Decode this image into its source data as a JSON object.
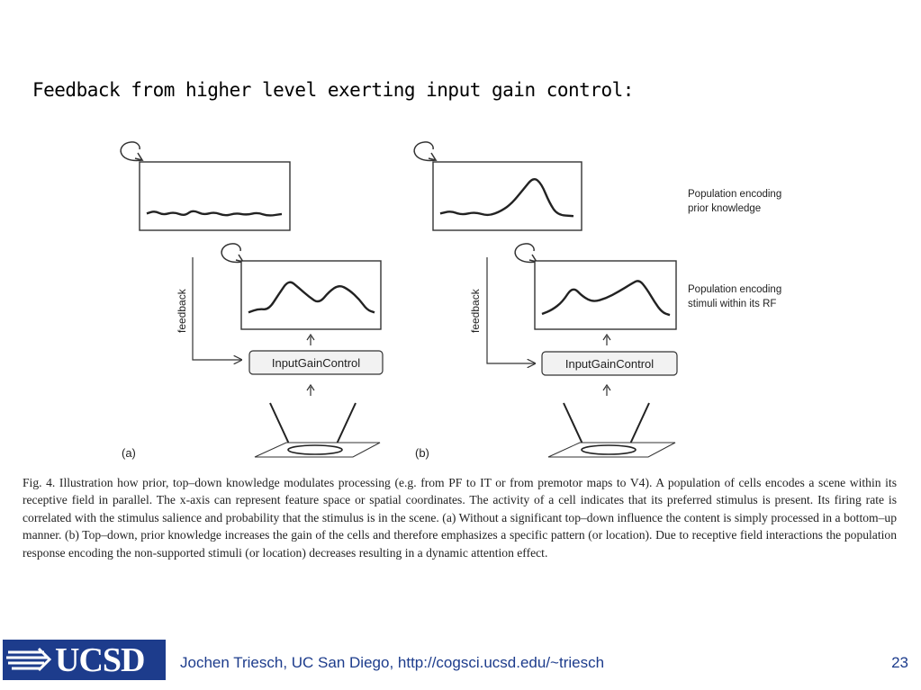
{
  "slide": {
    "title": "Feedback from higher level exerting input gain control:",
    "page_number": "23"
  },
  "figure": {
    "panels": [
      {
        "label": "(a)",
        "feedback_label": "feedback",
        "gain_box_label": "InputGainControl",
        "top_curve": [
          [
            0,
            0.15
          ],
          [
            0.06,
            0.2
          ],
          [
            0.12,
            0.12
          ],
          [
            0.2,
            0.18
          ],
          [
            0.28,
            0.1
          ],
          [
            0.34,
            0.22
          ],
          [
            0.42,
            0.12
          ],
          [
            0.5,
            0.18
          ],
          [
            0.58,
            0.1
          ],
          [
            0.66,
            0.16
          ],
          [
            0.74,
            0.12
          ],
          [
            0.82,
            0.17
          ],
          [
            0.9,
            0.1
          ],
          [
            1,
            0.14
          ]
        ],
        "middle_curve": [
          [
            0,
            0.15
          ],
          [
            0.08,
            0.22
          ],
          [
            0.16,
            0.2
          ],
          [
            0.24,
            0.5
          ],
          [
            0.32,
            0.78
          ],
          [
            0.4,
            0.62
          ],
          [
            0.48,
            0.45
          ],
          [
            0.56,
            0.32
          ],
          [
            0.64,
            0.55
          ],
          [
            0.72,
            0.68
          ],
          [
            0.8,
            0.58
          ],
          [
            0.88,
            0.4
          ],
          [
            0.94,
            0.2
          ],
          [
            1,
            0.15
          ]
        ]
      },
      {
        "label": "(b)",
        "feedback_label": "feedback",
        "gain_box_label": "InputGainControl",
        "top_curve": [
          [
            0,
            0.15
          ],
          [
            0.08,
            0.2
          ],
          [
            0.16,
            0.12
          ],
          [
            0.26,
            0.18
          ],
          [
            0.36,
            0.1
          ],
          [
            0.46,
            0.2
          ],
          [
            0.54,
            0.35
          ],
          [
            0.62,
            0.6
          ],
          [
            0.7,
            0.85
          ],
          [
            0.76,
            0.72
          ],
          [
            0.82,
            0.35
          ],
          [
            0.88,
            0.12
          ],
          [
            1,
            0.1
          ]
        ],
        "middle_curve": [
          [
            0,
            0.12
          ],
          [
            0.08,
            0.2
          ],
          [
            0.16,
            0.35
          ],
          [
            0.24,
            0.65
          ],
          [
            0.32,
            0.45
          ],
          [
            0.4,
            0.35
          ],
          [
            0.5,
            0.42
          ],
          [
            0.6,
            0.55
          ],
          [
            0.7,
            0.7
          ],
          [
            0.76,
            0.78
          ],
          [
            0.82,
            0.6
          ],
          [
            0.88,
            0.35
          ],
          [
            0.94,
            0.15
          ],
          [
            1,
            0.1
          ]
        ]
      }
    ],
    "right_labels": [
      [
        "Population encoding",
        "prior knowledge"
      ],
      [
        "Population encoding",
        "stimuli within its RF"
      ]
    ]
  },
  "caption": "Fig. 4. Illustration how prior, top–down knowledge modulates processing (e.g. from PF to IT or from premotor maps to V4). A population of cells encodes a scene within its receptive field in parallel. The x-axis can represent feature space or spatial coordinates. The activity of a cell indicates that its preferred stimulus is present. Its firing rate is correlated with the stimulus salience and probability that the stimulus is in the scene. (a) Without a significant top–down influence the content is simply processed in a bottom–up manner. (b) Top–down, prior knowledge increases the gain of the cells and therefore emphasizes a specific pattern (or location). Due to receptive field interactions the population response encoding the non-supported stimuli (or location) decreases resulting in a dynamic attention effect.",
  "footer": {
    "logo_text": "UCSD",
    "credit": "Jochen Triesch, UC San Diego, http://cogsci.ucsd.edu/~triesch",
    "brand_color": "#1d3c8c"
  }
}
